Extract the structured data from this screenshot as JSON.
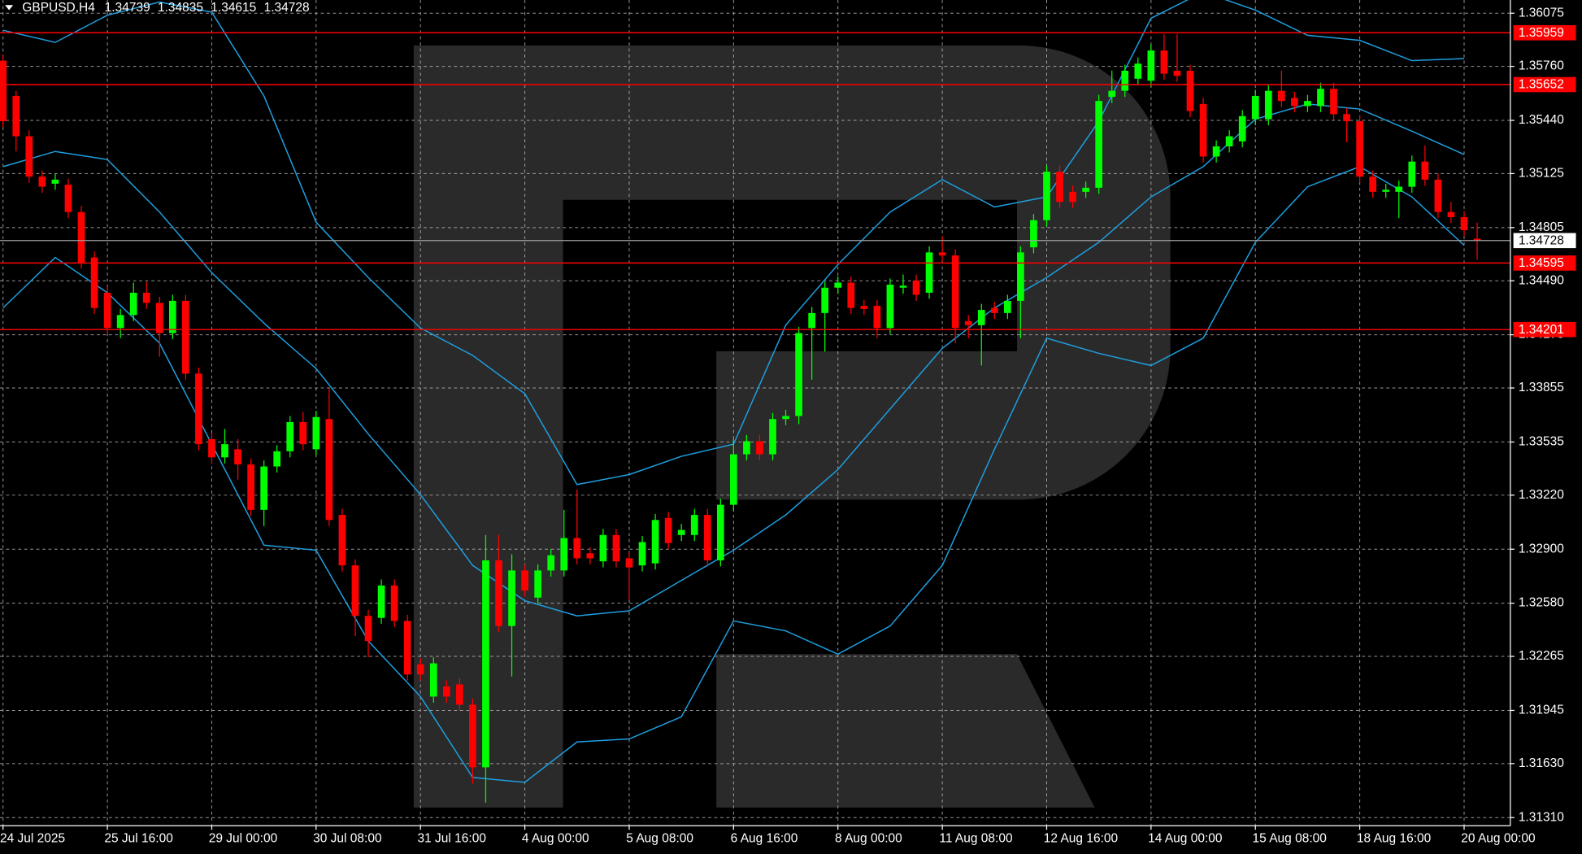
{
  "chart_data": {
    "type": "candlestick",
    "symbol": "GBPUSD,H4",
    "categories": [
      "24 Jul 2025",
      null,
      null,
      null,
      null,
      null,
      null,
      null,
      "25 Jul 16:00",
      null,
      null,
      null,
      null,
      null,
      null,
      null,
      "29 Jul 00:00",
      null,
      null,
      null,
      null,
      null,
      null,
      null,
      "30 Jul 08:00",
      null,
      null,
      null,
      null,
      null,
      null,
      null,
      "31 Jul 16:00",
      null,
      null,
      null,
      null,
      null,
      null,
      null,
      "4 Aug 00:00",
      null,
      null,
      null,
      null,
      null,
      null,
      null,
      "5 Aug 08:00",
      null,
      null,
      null,
      null,
      null,
      null,
      null,
      "6 Aug 16:00",
      null,
      null,
      null,
      null,
      null,
      null,
      null,
      "8 Aug 00:00",
      null,
      null,
      null,
      null,
      null,
      null,
      null,
      "11 Aug 08:00",
      null,
      null,
      null,
      null,
      null,
      null,
      null,
      "12 Aug 16:00",
      null,
      null,
      null,
      null,
      null,
      null,
      null,
      "14 Aug 00:00",
      null,
      null,
      null,
      null,
      null,
      null,
      null,
      "15 Aug 08:00",
      null,
      null,
      null,
      null,
      null,
      null,
      null,
      "18 Aug 16:00",
      null,
      null,
      null,
      null,
      null,
      null,
      null,
      "20 Aug 00:00",
      null
    ],
    "open": [
      1.35794,
      1.35585,
      1.35346,
      1.35107,
      1.35065,
      1.35059,
      1.34897,
      1.34628,
      1.34419,
      1.3421,
      1.34287,
      1.34419,
      1.34359,
      1.3418,
      1.34371,
      1.3394,
      1.33552,
      1.33444,
      1.33492,
      1.33402,
      1.33133,
      1.3339,
      1.3348,
      1.33653,
      1.33492,
      1.33671,
      1.33103,
      1.32804,
      1.32505,
      1.32493,
      1.32685,
      1.32475,
      1.32218,
      1.32027,
      1.32087,
      1.32099,
      1.31979,
      1.31608,
      1.32834,
      1.32445,
      1.32774,
      1.32613,
      1.32774,
      1.32774,
      1.32966,
      1.32876,
      1.32828,
      1.32984,
      1.32846,
      1.32804,
      1.32816,
      1.33085,
      1.32984,
      1.32984,
      1.33103,
      1.32834,
      1.33163,
      1.33462,
      1.3354,
      1.33462,
      1.33671,
      1.33689,
      1.3421,
      1.34299,
      1.34449,
      1.34479,
      1.34341,
      1.34341,
      1.3421,
      1.34449,
      1.34491,
      1.34419,
      1.34658,
      1.3464,
      1.34251,
      1.34227,
      1.34329,
      1.34299,
      1.34371,
      1.34688,
      1.34849,
      1.35136,
      1.35017,
      1.35017,
      1.35041,
      1.35579,
      1.35615,
      1.35687,
      1.35675,
      1.35854,
      1.35734,
      1.35734,
      1.35537,
      1.35226,
      1.35286,
      1.35316,
      1.35447,
      1.35447,
      1.35615,
      1.35573,
      1.35525,
      1.35525,
      1.35627,
      1.35477,
      1.35435,
      1.35107,
      1.35017,
      1.35017,
      1.35047,
      1.35196,
      1.35089,
      1.34897,
      1.34867,
      1.34739
    ],
    "high": [
      1.3583,
      1.35615,
      1.35382,
      1.35143,
      1.35125,
      1.35095,
      1.34933,
      1.34664,
      1.34455,
      1.34323,
      1.34479,
      1.34485,
      1.34395,
      1.34407,
      1.34407,
      1.33976,
      1.33588,
      1.33612,
      1.33552,
      1.33438,
      1.33426,
      1.33516,
      1.33689,
      1.33712,
      1.33719,
      1.33851,
      1.33139,
      1.3284,
      1.32541,
      1.32721,
      1.32721,
      1.32511,
      1.32254,
      1.3226,
      1.32123,
      1.32135,
      1.32015,
      1.32984,
      1.32984,
      1.3287,
      1.3281,
      1.3281,
      1.329,
      1.33133,
      1.33253,
      1.32912,
      1.3302,
      1.3302,
      1.32882,
      1.32978,
      1.33109,
      1.33121,
      1.3305,
      1.33139,
      1.33139,
      1.33199,
      1.33552,
      1.33576,
      1.33576,
      1.33707,
      1.33725,
      1.34216,
      1.34335,
      1.34485,
      1.34515,
      1.34515,
      1.34377,
      1.34377,
      1.34503,
      1.34527,
      1.34527,
      1.34694,
      1.34754,
      1.34676,
      1.34287,
      1.34353,
      1.34365,
      1.34407,
      1.34694,
      1.34885,
      1.35172,
      1.35172,
      1.35053,
      1.35077,
      1.35591,
      1.35735,
      1.3577,
      1.35812,
      1.3589,
      1.3595,
      1.3595,
      1.3577,
      1.35573,
      1.35322,
      1.35382,
      1.35501,
      1.35621,
      1.35651,
      1.35735,
      1.35609,
      1.35591,
      1.35663,
      1.35663,
      1.35513,
      1.35471,
      1.35143,
      1.35065,
      1.35083,
      1.35232,
      1.35292,
      1.35125,
      1.34957,
      1.34903,
      1.34835
    ],
    "low": [
      1.35399,
      1.35256,
      1.35071,
      1.35011,
      1.35029,
      1.34861,
      1.34562,
      1.34293,
      1.34174,
      1.3415,
      1.34251,
      1.34323,
      1.3404,
      1.34144,
      1.33904,
      1.33486,
      1.33408,
      1.33408,
      1.33312,
      1.33097,
      1.33037,
      1.33354,
      1.33444,
      1.33486,
      1.33456,
      1.33037,
      1.32768,
      1.32385,
      1.3226,
      1.32457,
      1.32439,
      1.32122,
      1.32122,
      1.31991,
      1.31991,
      1.31943,
      1.31512,
      1.31399,
      1.32409,
      1.32146,
      1.32619,
      1.32577,
      1.32738,
      1.32738,
      1.3281,
      1.3281,
      1.32792,
      1.32792,
      1.326,
      1.32768,
      1.3278,
      1.329,
      1.32948,
      1.32948,
      1.32798,
      1.32798,
      1.33127,
      1.33426,
      1.33426,
      1.33426,
      1.33635,
      1.33641,
      1.33904,
      1.3407,
      1.34413,
      1.34293,
      1.34287,
      1.3415,
      1.34174,
      1.34413,
      1.34371,
      1.34383,
      1.34604,
      1.3412,
      1.3415,
      1.33988,
      1.34263,
      1.34263,
      1.3415,
      1.34652,
      1.34813,
      1.34921,
      1.34921,
      1.34981,
      1.35005,
      1.35543,
      1.35579,
      1.35651,
      1.35639,
      1.35681,
      1.35668,
      1.35459,
      1.3519,
      1.3519,
      1.3525,
      1.3528,
      1.35411,
      1.35411,
      1.35519,
      1.35489,
      1.35489,
      1.35489,
      1.35441,
      1.3531,
      1.35071,
      1.34981,
      1.34981,
      1.34861,
      1.35011,
      1.35053,
      1.34861,
      1.34831,
      1.34754,
      1.34615
    ],
    "close": [
      1.35435,
      1.35346,
      1.35107,
      1.35047,
      1.35089,
      1.34897,
      1.34598,
      1.34329,
      1.3421,
      1.34287,
      1.34419,
      1.34359,
      1.3418,
      1.34371,
      1.3394,
      1.33522,
      1.33444,
      1.33522,
      1.33402,
      1.33133,
      1.3339,
      1.3348,
      1.33653,
      1.33522,
      1.33683,
      1.33073,
      1.32804,
      1.32505,
      1.32356,
      1.32685,
      1.32475,
      1.32158,
      1.32158,
      1.32224,
      1.32027,
      1.31979,
      1.31608,
      1.32834,
      1.32445,
      1.32774,
      1.32655,
      1.32774,
      1.32864,
      1.32966,
      1.32846,
      1.32846,
      1.32984,
      1.32828,
      1.32792,
      1.32942,
      1.33073,
      1.32936,
      1.33014,
      1.33103,
      1.32834,
      1.33163,
      1.33462,
      1.3354,
      1.33462,
      1.33671,
      1.33689,
      1.3418,
      1.34299,
      1.34449,
      1.34479,
      1.34329,
      1.34323,
      1.3421,
      1.34467,
      1.34461,
      1.34407,
      1.34658,
      1.3464,
      1.3421,
      1.34227,
      1.34317,
      1.34299,
      1.34371,
      1.34658,
      1.34849,
      1.35136,
      1.34957,
      1.34957,
      1.35041,
      1.35555,
      1.35615,
      1.35734,
      1.35776,
      1.35854,
      1.35717,
      1.35704,
      1.35495,
      1.35226,
      1.35286,
      1.35346,
      1.35465,
      1.35585,
      1.35615,
      1.35555,
      1.35525,
      1.35555,
      1.35627,
      1.35477,
      1.35435,
      1.35107,
      1.35017,
      1.35029,
      1.35047,
      1.35196,
      1.35089,
      1.34897,
      1.34867,
      1.3479,
      1.34728
    ],
    "up_color": "#00ff00",
    "down_color": "#ff0000",
    "bands": {
      "color": "#1e9fe0",
      "x": [
        0,
        4,
        8,
        12,
        16,
        20,
        24,
        28,
        32,
        36,
        40,
        44,
        48,
        52,
        56,
        60,
        64,
        68,
        72,
        76,
        80,
        84,
        88,
        92,
        96,
        100,
        104,
        108,
        112
      ],
      "upper": [
        1.35974,
        1.35902,
        1.36063,
        1.36141,
        1.36081,
        1.35585,
        1.34837,
        1.34509,
        1.3421,
        1.34048,
        1.33821,
        1.33283,
        1.33342,
        1.3345,
        1.33522,
        1.34227,
        1.34586,
        1.34897,
        1.35089,
        1.34927,
        1.34987,
        1.35435,
        1.36045,
        1.36201,
        1.36093,
        1.35944,
        1.35914,
        1.35794,
        1.35806
      ],
      "middle": [
        1.35166,
        1.35256,
        1.35208,
        1.34897,
        1.34538,
        1.34239,
        1.3397,
        1.33582,
        1.33223,
        1.32804,
        1.32595,
        1.32505,
        1.32535,
        1.32715,
        1.32894,
        1.33103,
        1.33372,
        1.33731,
        1.3409,
        1.34329,
        1.34509,
        1.34718,
        1.34987,
        1.35166,
        1.35447,
        1.35537,
        1.35507,
        1.35376,
        1.35238
      ],
      "lower": [
        1.34329,
        1.34628,
        1.34419,
        1.3412,
        1.33522,
        1.32924,
        1.32894,
        1.32356,
        1.32027,
        1.31548,
        1.31519,
        1.31758,
        1.31776,
        1.31907,
        1.32475,
        1.32416,
        1.32278,
        1.32445,
        1.32804,
        1.33492,
        1.3415,
        1.3406,
        1.33988,
        1.3415,
        1.34718,
        1.35047,
        1.35166,
        1.34987,
        1.347
      ]
    },
    "levels": {
      "color": "#ff0000",
      "values": [
        1.35959,
        1.35652,
        1.34595,
        1.34201
      ]
    },
    "ylim": [
      1.31262,
      1.36153
    ],
    "yticks": [
      1.36075,
      {
        "value": 1.3576,
        "label": "1.35760"
      },
      {
        "value": 1.3544,
        "label": "1.35440"
      },
      1.35125,
      1.34805,
      {
        "value": 1.3449,
        "label": "1.34490"
      },
      {
        "value": 1.3417,
        "label": "1.34170"
      },
      1.33855,
      1.33535,
      {
        "value": 1.3322,
        "label": "1.33220"
      },
      {
        "value": 1.329,
        "label": "1.32900"
      },
      {
        "value": 1.3258,
        "label": "1.32580"
      },
      1.32265,
      1.31945,
      {
        "value": 1.3163,
        "label": "1.31630"
      },
      {
        "value": 1.3131,
        "label": "1.31310"
      }
    ],
    "grid": true
  }
}
